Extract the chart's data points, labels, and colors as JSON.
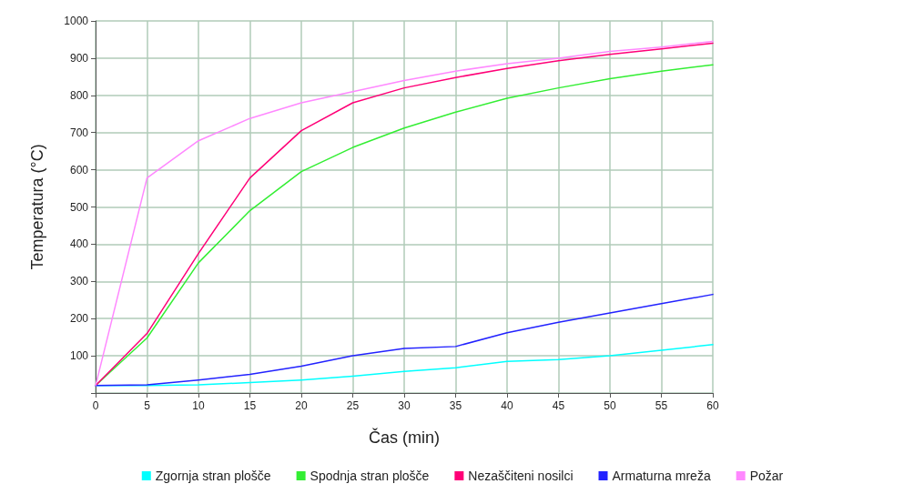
{
  "chart_data": {
    "type": "line",
    "xlabel": "Čas (min)",
    "ylabel": "Temperatura (°C)",
    "x": [
      0,
      5,
      10,
      15,
      20,
      25,
      30,
      35,
      40,
      45,
      50,
      55,
      60
    ],
    "series": [
      {
        "name": "Zgornja stran plošče",
        "color": "#00ffff",
        "values": [
          20,
          20,
          22,
          28,
          35,
          45,
          58,
          68,
          85,
          90,
          100,
          115,
          130
        ]
      },
      {
        "name": "Spodnja stran plošče",
        "color": "#33ee33",
        "values": [
          20,
          148,
          350,
          490,
          595,
          660,
          712,
          755,
          792,
          820,
          845,
          865,
          882
        ]
      },
      {
        "name": "Nezaščiteni nosilci",
        "color": "#ff0077",
        "values": [
          20,
          160,
          375,
          578,
          705,
          780,
          820,
          848,
          872,
          893,
          910,
          925,
          940
        ]
      },
      {
        "name": "Armaturna mreža",
        "color": "#2222ff",
        "values": [
          20,
          22,
          35,
          50,
          72,
          100,
          120,
          125,
          162,
          190,
          215,
          240,
          265
        ]
      },
      {
        "name": "Požar",
        "color": "#ff88ff",
        "values": [
          20,
          578,
          678,
          738,
          780,
          810,
          840,
          865,
          885,
          900,
          918,
          930,
          945
        ]
      }
    ],
    "xlim": [
      0,
      60
    ],
    "xticks": [
      0,
      5,
      10,
      15,
      20,
      25,
      30,
      35,
      40,
      45,
      50,
      55,
      60
    ],
    "ylim": [
      0,
      1000
    ],
    "yticks": [
      {
        "value": 0,
        "label": null
      },
      100,
      200,
      300,
      400,
      500,
      600,
      700,
      800,
      900,
      1000
    ],
    "grid": true,
    "legend": "bottom",
    "marker": "none",
    "line_style": "solid"
  }
}
